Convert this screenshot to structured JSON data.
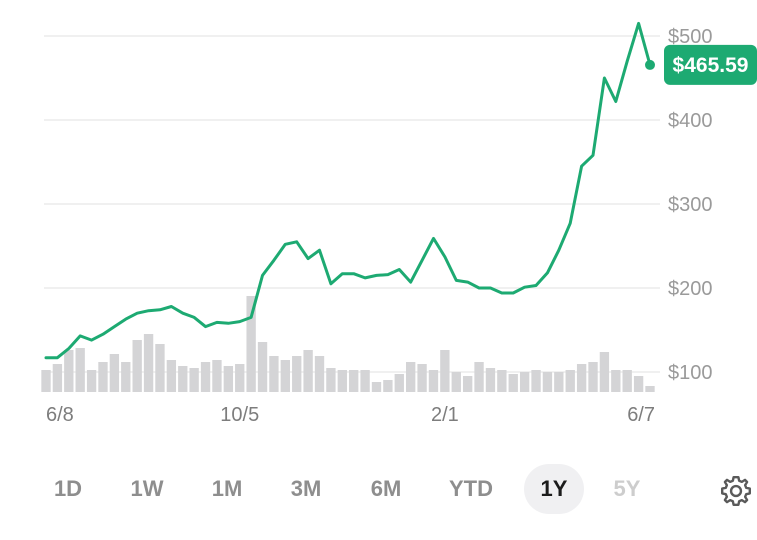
{
  "colors": {
    "line": "#1daa72",
    "price_tag_bg": "#1daa72",
    "volume": "#d4d4d6",
    "grid": "#ececec",
    "axis_text": "#9a9a9a",
    "selected_range_bg": "#f0f0f2"
  },
  "chart_data": {
    "type": "line",
    "y_axis_labels": [
      "$500",
      "$400",
      "$300",
      "$200",
      "$100"
    ],
    "y_axis_values": [
      500,
      400,
      300,
      200,
      100
    ],
    "ylim": [
      78,
      520
    ],
    "x_tick_labels": [
      "6/8",
      "10/5",
      "2/1",
      "6/7"
    ],
    "x_tick_index": [
      0,
      17,
      35,
      52
    ],
    "current_price_label": "$465.59",
    "current_price": 465.59,
    "grid": true,
    "series": [
      {
        "values": [
          117,
          117,
          128,
          143,
          138,
          145,
          154,
          163,
          170,
          173,
          174,
          178,
          170,
          165,
          154,
          159,
          158,
          160,
          165,
          215,
          233,
          252,
          255,
          235,
          245,
          205,
          217,
          217,
          212,
          215,
          216,
          222,
          207,
          233,
          259,
          237,
          209,
          207,
          200,
          200,
          194,
          194,
          201,
          203,
          218,
          245,
          277,
          345,
          358,
          450,
          422,
          470,
          515,
          465.59
        ]
      }
    ],
    "volume_values": [
      22,
      28,
      42,
      44,
      22,
      30,
      38,
      30,
      52,
      58,
      48,
      32,
      26,
      24,
      30,
      32,
      26,
      28,
      96,
      50,
      36,
      32,
      36,
      42,
      36,
      24,
      22,
      22,
      22,
      10,
      12,
      18,
      30,
      28,
      22,
      42,
      20,
      16,
      30,
      24,
      22,
      18,
      20,
      22,
      20,
      20,
      22,
      28,
      30,
      40,
      22,
      22,
      16,
      6
    ]
  },
  "range_selector": {
    "options": [
      {
        "label": "1D",
        "state": "normal"
      },
      {
        "label": "1W",
        "state": "normal"
      },
      {
        "label": "1M",
        "state": "normal"
      },
      {
        "label": "3M",
        "state": "normal"
      },
      {
        "label": "6M",
        "state": "normal"
      },
      {
        "label": "YTD",
        "state": "normal"
      },
      {
        "label": "1Y",
        "state": "selected"
      },
      {
        "label": "5Y",
        "state": "disabled"
      }
    ],
    "settings_icon": "gear-icon"
  }
}
